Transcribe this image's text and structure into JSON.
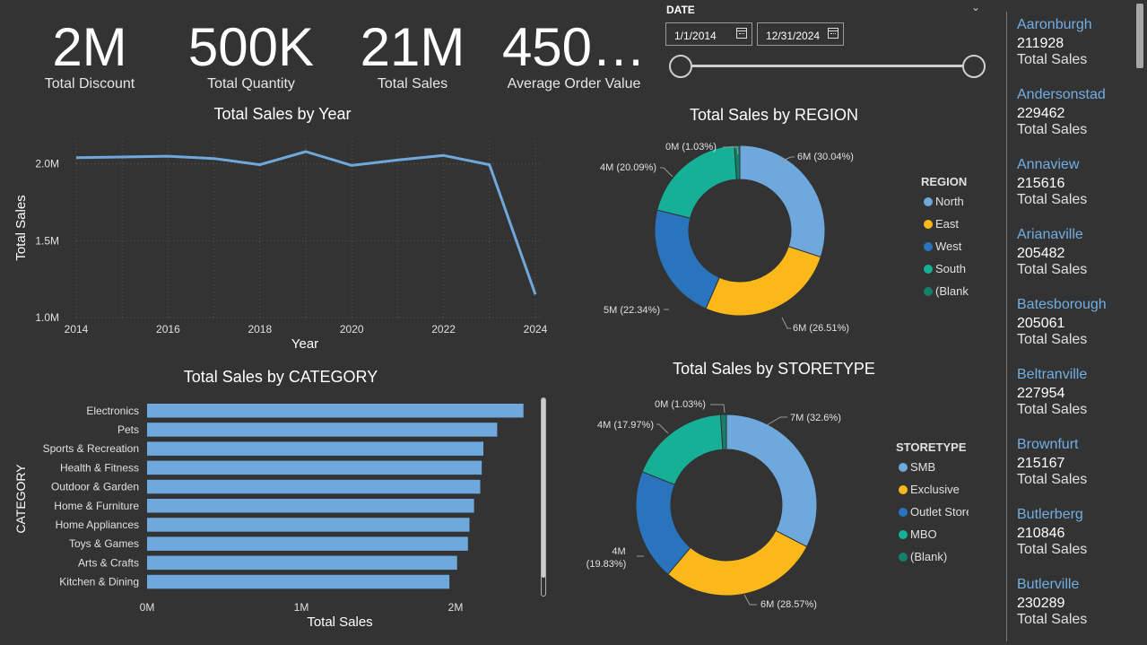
{
  "kpis": [
    {
      "value": "2M",
      "label": "Total Discount"
    },
    {
      "value": "500K",
      "label": "Total Quantity"
    },
    {
      "value": "21M",
      "label": "Total Sales"
    },
    {
      "value": "450…",
      "label": "Average Order Value"
    }
  ],
  "date_filter": {
    "label": "DATE",
    "start": "1/1/2014",
    "end": "12/31/2024"
  },
  "cities": [
    {
      "name": "Aaronburgh",
      "value": "211928",
      "caption": "Total Sales"
    },
    {
      "name": "Andersonstad",
      "value": "229462",
      "caption": "Total Sales"
    },
    {
      "name": "Annaview",
      "value": "215616",
      "caption": "Total Sales"
    },
    {
      "name": "Arianaville",
      "value": "205482",
      "caption": "Total Sales"
    },
    {
      "name": "Batesborough",
      "value": "205061",
      "caption": "Total Sales"
    },
    {
      "name": "Beltranville",
      "value": "227954",
      "caption": "Total Sales"
    },
    {
      "name": "Brownfurt",
      "value": "215167",
      "caption": "Total Sales"
    },
    {
      "name": "Butlerberg",
      "value": "210846",
      "caption": "Total Sales"
    },
    {
      "name": "Butlerville",
      "value": "230289",
      "caption": "Total Sales"
    }
  ],
  "chart_data": [
    {
      "type": "line",
      "title": "Total Sales by Year",
      "xlabel": "Year",
      "ylabel": "Total Sales",
      "x": [
        2014,
        2015,
        2016,
        2017,
        2018,
        2019,
        2020,
        2021,
        2022,
        2023,
        2024
      ],
      "values": [
        2040000,
        2045000,
        2050000,
        2035000,
        1995000,
        2080000,
        1990000,
        2025000,
        2055000,
        1995000,
        1150000
      ],
      "x_ticks": [
        "2014",
        "2016",
        "2018",
        "2020",
        "2022",
        "2024"
      ],
      "y_ticks": [
        {
          "v": 2000000,
          "t": "2.0M"
        },
        {
          "v": 1500000,
          "t": "1.5M"
        },
        {
          "v": 1000000,
          "t": "1.0M"
        }
      ],
      "ylim": [
        1000000,
        2150000
      ],
      "color": "#6fa8dc",
      "grid": true
    },
    {
      "type": "bar",
      "title": "Total Sales by CATEGORY",
      "xlabel": "Total Sales",
      "ylabel": "CATEGORY",
      "categories": [
        "Electronics",
        "Pets",
        "Sports & Recreation",
        "Health & Fitness",
        "Outdoor & Garden",
        "Home & Furniture",
        "Home Appliances",
        "Toys & Games",
        "Arts & Crafts",
        "Kitchen & Dining"
      ],
      "values": [
        2440000,
        2270000,
        2180000,
        2170000,
        2160000,
        2120000,
        2090000,
        2080000,
        2010000,
        1960000
      ],
      "x_ticks": [
        {
          "v": 0,
          "t": "0M"
        },
        {
          "v": 1000000,
          "t": "1M"
        },
        {
          "v": 2000000,
          "t": "2M"
        }
      ],
      "xlim": [
        0,
        2500000
      ],
      "color": "#6fa8dc"
    },
    {
      "type": "pie",
      "title": "Total Sales by REGION",
      "legend_title": "REGION",
      "slices": [
        {
          "name": "North",
          "percent": 30.04,
          "label": "6M (30.04%)",
          "color": "#6fa8dc"
        },
        {
          "name": "East",
          "percent": 26.51,
          "label": "6M (26.51%)",
          "color": "#fbb81a"
        },
        {
          "name": "West",
          "percent": 22.34,
          "label": "5M (22.34%)",
          "color": "#2a74bd"
        },
        {
          "name": "South",
          "percent": 20.09,
          "label": "4M (20.09%)",
          "color": "#16b096"
        },
        {
          "name": "(Blank)",
          "percent": 1.03,
          "label": "0M (1.03%)",
          "color": "#14806a"
        }
      ]
    },
    {
      "type": "pie",
      "title": "Total Sales by STORETYPE",
      "legend_title": "STORETYPE",
      "slices": [
        {
          "name": "SMB",
          "percent": 32.6,
          "label": "7M (32.6%)",
          "color": "#6fa8dc"
        },
        {
          "name": "Exclusive",
          "percent": 28.57,
          "label": "6M (28.57%)",
          "color": "#fbb81a"
        },
        {
          "name": "Outlet Stores",
          "percent": 19.83,
          "label": "4M\n(19.83%)",
          "color": "#2a74bd"
        },
        {
          "name": "MBO",
          "percent": 17.97,
          "label": "4M (17.97%)",
          "color": "#16b096"
        },
        {
          "name": "(Blank)",
          "percent": 1.03,
          "label": "0M (1.03%)",
          "color": "#14806a"
        }
      ]
    }
  ]
}
